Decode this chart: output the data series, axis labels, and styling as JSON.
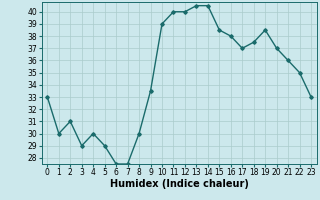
{
  "xlabel": "Humidex (Indice chaleur)",
  "ylabel": "",
  "x": [
    0,
    1,
    2,
    3,
    4,
    5,
    6,
    7,
    8,
    9,
    10,
    11,
    12,
    13,
    14,
    15,
    16,
    17,
    18,
    19,
    20,
    21,
    22,
    23
  ],
  "y": [
    33,
    30,
    31,
    29,
    30,
    29,
    27.5,
    27.5,
    30,
    33.5,
    39,
    40,
    40,
    40.5,
    40.5,
    38.5,
    38,
    37,
    37.5,
    38.5,
    37,
    36,
    35,
    33
  ],
  "line_color": "#1a6b6b",
  "marker": "D",
  "marker_size": 1.8,
  "bg_color": "#cce8ec",
  "grid_color": "#aacccc",
  "ylim": [
    27.5,
    40.8
  ],
  "yticks": [
    28,
    29,
    30,
    31,
    32,
    33,
    34,
    35,
    36,
    37,
    38,
    39,
    40
  ],
  "xticks": [
    0,
    1,
    2,
    3,
    4,
    5,
    6,
    7,
    8,
    9,
    10,
    11,
    12,
    13,
    14,
    15,
    16,
    17,
    18,
    19,
    20,
    21,
    22,
    23
  ],
  "xlabel_fontsize": 7,
  "tick_fontsize": 5.5,
  "line_width": 1.0
}
